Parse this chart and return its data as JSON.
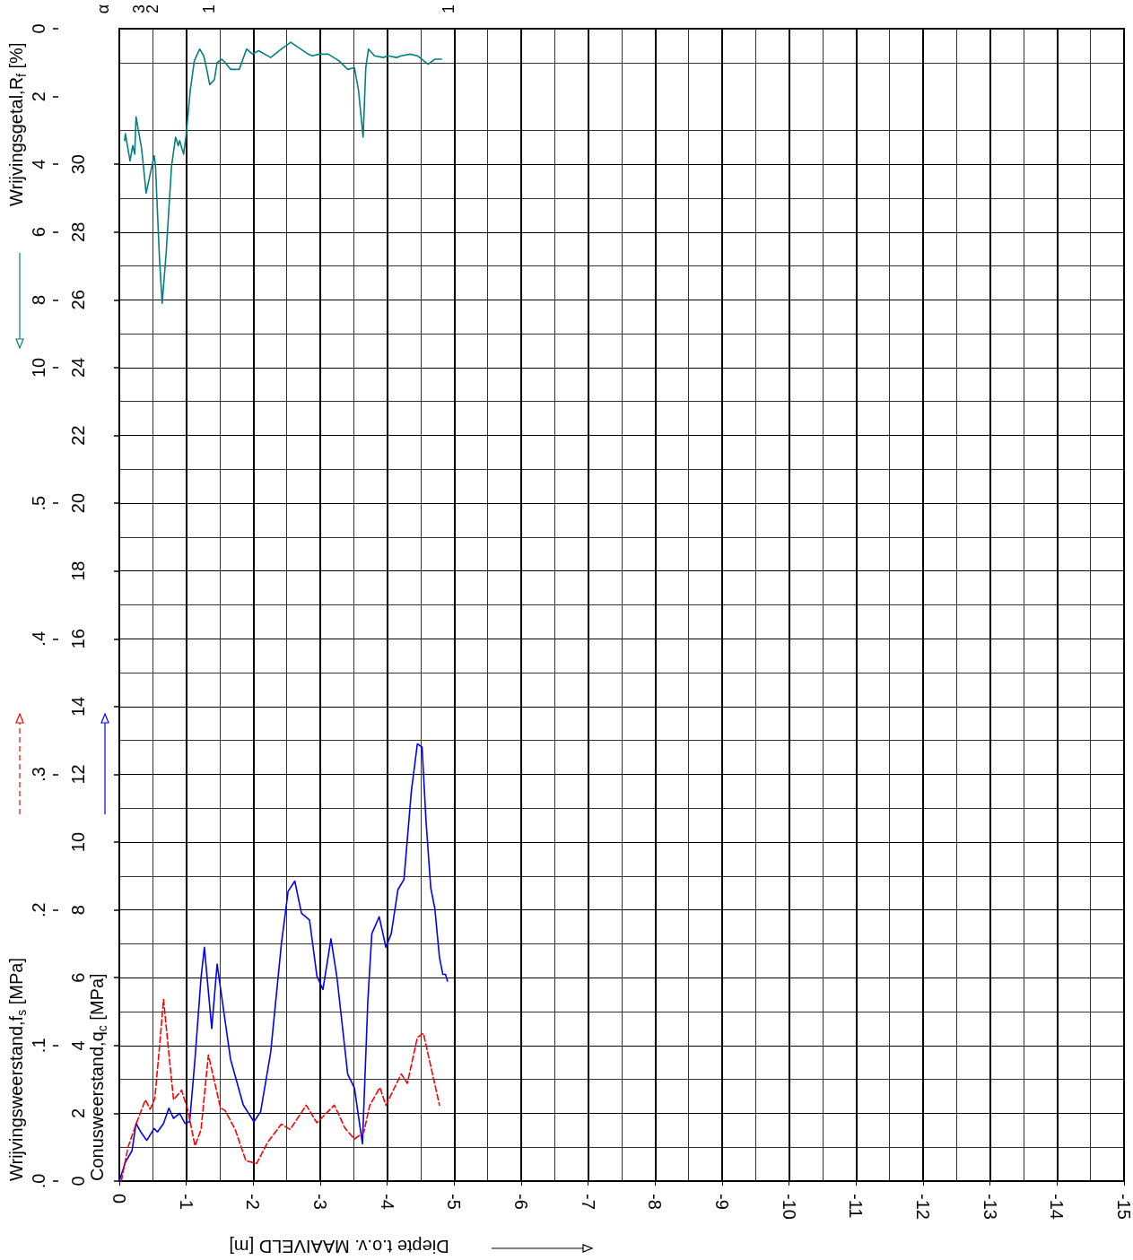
{
  "chart_data": {
    "type": "line",
    "xlabel": "Diepte t.o.v. MAAIVELD [m]",
    "ylabel": "Conusweerstand,q$_{c}$ [MPa]",
    "y2label": "Wrijvingsweerstand,f$_{s}$ [MPa]",
    "y3label": "Wrijvingsgetal,R$_{f}$ [%]",
    "xlim": [
      0,
      -15
    ],
    "xticks": [
      0,
      -1,
      -2,
      -3,
      -4,
      -5,
      -6,
      -7,
      -8,
      -9,
      -10,
      -11,
      -12,
      -13,
      -14,
      -15
    ],
    "ylim": [
      0,
      34
    ],
    "yticks": [
      0,
      2,
      4,
      6,
      8,
      10,
      12,
      14,
      16,
      18,
      20,
      22,
      24,
      26,
      28,
      30
    ],
    "y2lim": [
      0,
      0.85
    ],
    "y2ticks": [
      {
        "value": 0,
        "label": ".0"
      },
      {
        "value": 0.1,
        "label": ".1"
      },
      {
        "value": 0.2,
        "label": ".2"
      },
      {
        "value": 0.3,
        "label": ".3"
      },
      {
        "value": 0.4,
        "label": ".4"
      },
      {
        "value": 0.5,
        "label": ".5"
      }
    ],
    "y3lim": [
      34,
      0
    ],
    "y3ticks": [
      0,
      2,
      4,
      6,
      8,
      10
    ],
    "grid": true,
    "marker": "none",
    "annotations": [
      "α",
      "3",
      "2",
      "1",
      "1"
    ],
    "series": [
      {
        "color": "#0000ff",
        "axis": "y",
        "line_style": "solid",
        "x": [
          0,
          -0.09,
          -0.19,
          -0.25,
          -0.32,
          -0.41,
          -0.52,
          -0.57,
          -0.66,
          -0.74,
          -0.81,
          -0.9,
          -0.98,
          -1.05,
          -1.13,
          -1.22,
          -1.27,
          -1.38,
          -1.46,
          -1.66,
          -1.85,
          -2.01,
          -2.11,
          -2.26,
          -2.42,
          -2.52,
          -2.62,
          -2.72,
          -2.84,
          -2.95,
          -3.04,
          -3.16,
          -3.25,
          -3.41,
          -3.51,
          -3.63,
          -3.71,
          -3.77,
          -3.88,
          -3.98,
          -4.06,
          -4.16,
          -4.25,
          -4.36,
          -4.45,
          -4.52,
          -4.58,
          -4.65,
          -4.71,
          -4.78,
          -4.83,
          -4.87,
          -4.9
        ],
        "values": [
          0,
          0.55,
          0.9,
          1.7,
          1.45,
          1.2,
          1.55,
          1.45,
          1.7,
          2.15,
          1.85,
          2.0,
          1.7,
          1.75,
          3.6,
          6.0,
          6.9,
          4.5,
          6.4,
          3.6,
          2.25,
          1.75,
          2.05,
          3.8,
          7.0,
          8.55,
          8.85,
          7.9,
          7.7,
          6.05,
          5.65,
          7.15,
          6.0,
          3.15,
          2.75,
          1.1,
          5.3,
          7.3,
          7.8,
          6.9,
          7.3,
          8.6,
          8.9,
          11.5,
          12.9,
          12.8,
          10.6,
          8.65,
          8.05,
          6.6,
          6.1,
          6.1,
          5.9
        ]
      },
      {
        "color": "#ff0000",
        "axis": "y2",
        "line_style": "dashed",
        "x": [
          -0.03,
          -0.13,
          -0.25,
          -0.39,
          -0.46,
          -0.53,
          -0.6,
          -0.66,
          -0.73,
          -0.81,
          -0.93,
          -1.02,
          -1.13,
          -1.22,
          -1.33,
          -1.51,
          -1.58,
          -1.73,
          -1.89,
          -2.05,
          -2.22,
          -2.42,
          -2.55,
          -2.79,
          -2.95,
          -3.21,
          -3.37,
          -3.51,
          -3.65,
          -3.74,
          -3.89,
          -3.98,
          -4.21,
          -4.3,
          -4.45,
          -4.54,
          -4.78
        ],
        "values": [
          0,
          0.025,
          0.042,
          0.06,
          0.053,
          0.061,
          0.099,
          0.134,
          0.099,
          0.06,
          0.067,
          0.053,
          0.026,
          0.038,
          0.093,
          0.054,
          0.052,
          0.038,
          0.015,
          0.013,
          0.029,
          0.042,
          0.038,
          0.056,
          0.043,
          0.056,
          0.039,
          0.031,
          0.036,
          0.056,
          0.069,
          0.056,
          0.079,
          0.072,
          0.106,
          0.109,
          0.056
        ]
      },
      {
        "color": "#008080",
        "axis": "y3",
        "line_style": "solid",
        "x": [
          -0.08,
          -0.09,
          -0.16,
          -0.2,
          -0.23,
          -0.25,
          -0.33,
          -0.36,
          -0.4,
          -0.52,
          -0.54,
          -0.6,
          -0.64,
          -0.66,
          -0.7,
          -0.78,
          -0.84,
          -0.88,
          -0.9,
          -0.96,
          -1.0,
          -1.06,
          -1.12,
          -1.2,
          -1.26,
          -1.3,
          -1.35,
          -1.42,
          -1.46,
          -1.53,
          -1.58,
          -1.66,
          -1.79,
          -1.9,
          -1.99,
          -2.08,
          -2.26,
          -2.42,
          -2.56,
          -2.82,
          -2.88,
          -2.99,
          -3.12,
          -3.28,
          -3.41,
          -3.51,
          -3.57,
          -3.64,
          -3.68,
          -3.72,
          -3.81,
          -3.94,
          -4.01,
          -4.14,
          -4.21,
          -4.34,
          -4.45,
          -4.61,
          -4.71,
          -4.81
        ],
        "values": [
          3.3,
          3.1,
          3.9,
          3.45,
          3.7,
          2.6,
          3.5,
          4.05,
          4.85,
          3.75,
          4.05,
          6.8,
          8.1,
          7.6,
          6.6,
          4.05,
          3.2,
          3.45,
          3.3,
          3.7,
          3.1,
          1.8,
          0.95,
          0.6,
          0.8,
          1.15,
          1.65,
          1.5,
          1.0,
          0.9,
          1.0,
          1.2,
          1.2,
          0.6,
          0.75,
          0.65,
          0.85,
          0.6,
          0.4,
          0.75,
          0.8,
          0.75,
          0.75,
          0.95,
          1.2,
          1.15,
          1.8,
          3.2,
          1.15,
          0.6,
          0.8,
          0.85,
          0.8,
          0.85,
          0.8,
          0.75,
          0.8,
          1.05,
          0.9,
          0.9
        ]
      }
    ]
  }
}
